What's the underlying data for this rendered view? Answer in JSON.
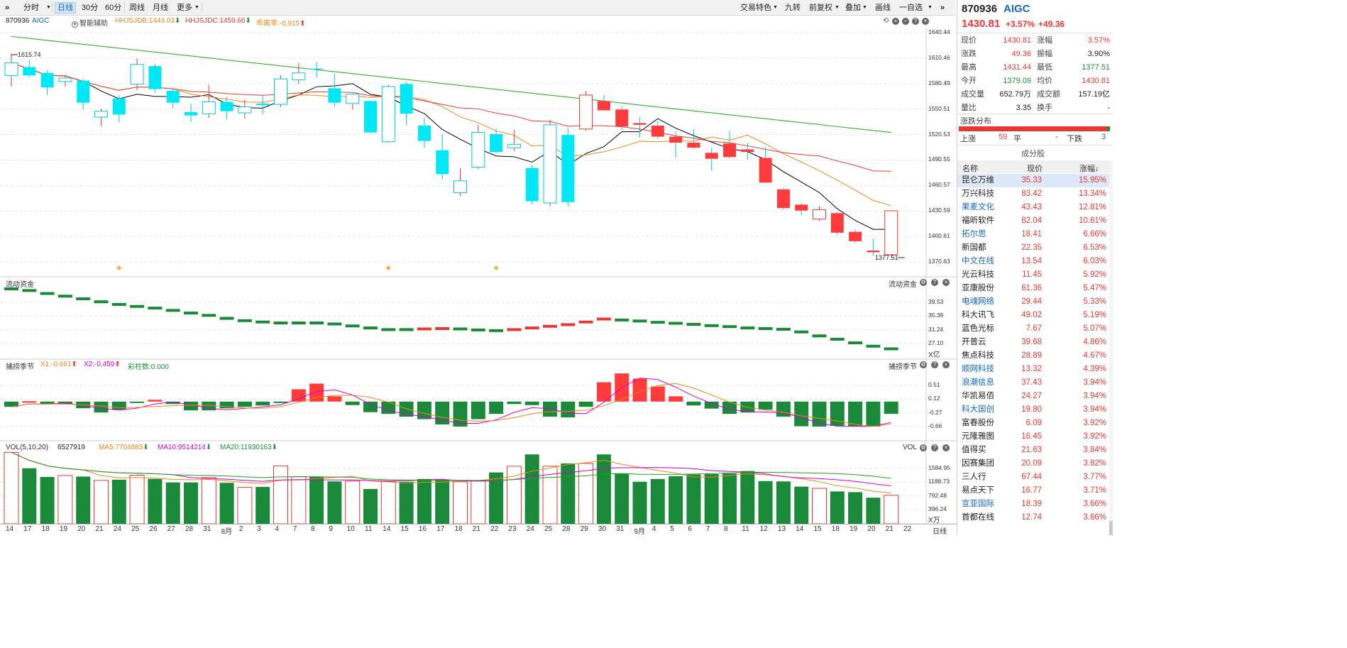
{
  "toolbar": {
    "expand_icon": "»",
    "periods": [
      "分时",
      "日线",
      "30分",
      "60分",
      "周线",
      "月线",
      "更多"
    ],
    "selected_period": "日线",
    "right_buttons": [
      "交易特色",
      "九转",
      "前复权",
      "叠加",
      "画线",
      "一自选"
    ]
  },
  "main_chart": {
    "code": "870936",
    "name": "AIGC",
    "smart_assist": "智能辅助",
    "ind1": "HHJSJDB:1444.03",
    "ind2": "HHJSJDC:1459.66",
    "ind3": "乖离率:-0.915",
    "high_label": "1615.74",
    "low_label": "1377.51",
    "y_labels": [
      "1640.44",
      "1610.46",
      "1580.49",
      "1550.51",
      "1520.53",
      "1490.55",
      "1460.57",
      "1430.59",
      "1400.61",
      "1370.63"
    ]
  },
  "flow_panel": {
    "title": "流动资金",
    "y_labels": [
      "39.53",
      "35.39",
      "31.24",
      "27.10"
    ],
    "unit": "X亿"
  },
  "season_panel": {
    "title": "捕捞季节",
    "x1": "X1:-0.661",
    "x2": "X2:-0.459",
    "bars": "彩柱数:0.000",
    "y_labels": [
      "0.51",
      "0.12",
      "-0.27",
      "-0.66"
    ]
  },
  "vol_panel": {
    "title": "VOL(5,10,20)",
    "vol": "6527919",
    "ma5": "MA5:7704883",
    "ma10": "MA10:9514214",
    "ma20": "MA20:11930163",
    "y_labels": [
      "1584.95",
      "1188.73",
      "792.48",
      "396.24"
    ],
    "unit": "X万"
  },
  "x_axis": {
    "labels": [
      "14",
      "17",
      "18",
      "19",
      "20",
      "21",
      "24",
      "25",
      "26",
      "27",
      "28",
      "31",
      "8月",
      "2",
      "3",
      "4",
      "7",
      "8",
      "9",
      "10",
      "11",
      "14",
      "15",
      "16",
      "17",
      "18",
      "21",
      "22",
      "23",
      "24",
      "25",
      "28",
      "29",
      "30",
      "31",
      "9月",
      "4",
      "5",
      "6",
      "7",
      "8",
      "11",
      "12",
      "13",
      "14",
      "15",
      "18",
      "19",
      "20",
      "21",
      "22"
    ],
    "end_label": "日线"
  },
  "chart_data": {
    "type": "candlestick",
    "dates": [
      "14",
      "17",
      "18",
      "19",
      "20",
      "21",
      "24",
      "25",
      "26",
      "27",
      "28",
      "31",
      "8月",
      "2",
      "3",
      "4",
      "7",
      "8",
      "9",
      "10",
      "11",
      "14",
      "15",
      "16",
      "17",
      "18",
      "21",
      "22",
      "23",
      "24",
      "25",
      "28",
      "29",
      "30",
      "31",
      "9月",
      "4",
      "5",
      "6",
      "7",
      "8",
      "11",
      "12",
      "13",
      "14",
      "15",
      "18",
      "19",
      "20",
      "21"
    ],
    "ohlc": [
      [
        1590,
        1615.74,
        1577,
        1605
      ],
      [
        1600,
        1608,
        1588,
        1590
      ],
      [
        1593,
        1596,
        1567,
        1576
      ],
      [
        1583,
        1591,
        1577,
        1587
      ],
      [
        1584,
        1586,
        1550,
        1558
      ],
      [
        1541,
        1551,
        1530,
        1548
      ],
      [
        1563,
        1567,
        1535,
        1544
      ],
      [
        1580,
        1610,
        1573,
        1603
      ],
      [
        1601,
        1604,
        1570,
        1574
      ],
      [
        1572,
        1575,
        1551,
        1558
      ],
      [
        1547,
        1557,
        1535,
        1543
      ],
      [
        1545,
        1579,
        1540,
        1559
      ],
      [
        1559,
        1565,
        1538,
        1548
      ],
      [
        1546,
        1562,
        1539,
        1553
      ],
      [
        1557,
        1566,
        1544,
        1555
      ],
      [
        1556,
        1590,
        1553,
        1586
      ],
      [
        1585,
        1605,
        1580,
        1593
      ],
      [
        1598,
        1606,
        1587,
        1597
      ],
      [
        1575,
        1592,
        1553,
        1558
      ],
      [
        1557,
        1569,
        1550,
        1568
      ],
      [
        1560,
        1560,
        1522,
        1523
      ],
      [
        1512,
        1579,
        1511,
        1577
      ],
      [
        1580,
        1582,
        1532,
        1545
      ],
      [
        1531,
        1540,
        1505,
        1513
      ],
      [
        1502,
        1521,
        1468,
        1474
      ],
      [
        1452,
        1481,
        1448,
        1466
      ],
      [
        1482,
        1532,
        1480,
        1523
      ],
      [
        1521,
        1528,
        1498,
        1500
      ],
      [
        1505,
        1526,
        1501,
        1509
      ],
      [
        1481,
        1485,
        1438,
        1442
      ],
      [
        1440,
        1538,
        1436,
        1532
      ],
      [
        1520,
        1528,
        1436,
        1441
      ],
      [
        1527,
        1572,
        1525,
        1567
      ],
      [
        1560,
        1567,
        1549,
        1549
      ],
      [
        1550,
        1554,
        1526,
        1530
      ],
      [
        1534,
        1541,
        1517,
        1532
      ],
      [
        1531,
        1536,
        1515,
        1518
      ],
      [
        1518,
        1524,
        1493,
        1511
      ],
      [
        1511,
        1527,
        1504,
        1505
      ],
      [
        1499,
        1505,
        1478,
        1492
      ],
      [
        1510,
        1525,
        1492,
        1494
      ],
      [
        1503,
        1511,
        1491,
        1500
      ],
      [
        1493,
        1506,
        1463,
        1464
      ],
      [
        1456,
        1458,
        1432,
        1434
      ],
      [
        1438,
        1440,
        1426,
        1431
      ],
      [
        1421,
        1436,
        1419,
        1432
      ],
      [
        1428,
        1430,
        1402,
        1405
      ],
      [
        1406,
        1409,
        1393,
        1395
      ],
      [
        1384,
        1398,
        1377.51,
        1382
      ],
      [
        1379.09,
        1431.44,
        1377.51,
        1430.81
      ]
    ]
  },
  "quote": {
    "code": "870936",
    "name": "AIGC",
    "price": "1430.81",
    "pct": "+3.57%",
    "chg": "+49.36",
    "rows": [
      {
        "l1": "现价",
        "v1": "1430.81",
        "c1": "red",
        "l2": "涨幅",
        "v2": "3.57%",
        "c2": "red"
      },
      {
        "l1": "涨跌",
        "v1": "49.36",
        "c1": "red",
        "l2": "振幅",
        "v2": "3.90%",
        "c2": "dark"
      },
      {
        "l1": "最高",
        "v1": "1431.44",
        "c1": "red",
        "l2": "最低",
        "v2": "1377.51",
        "c2": "green"
      },
      {
        "l1": "今开",
        "v1": "1379.09",
        "c1": "green",
        "l2": "均价",
        "v2": "1430.81",
        "c2": "red"
      },
      {
        "l1": "成交量",
        "v1": "652.79万",
        "c1": "dark",
        "l2": "成交额",
        "v2": "157.19亿",
        "c2": "dark"
      },
      {
        "l1": "量比",
        "v1": "3.35",
        "c1": "dark",
        "l2": "换手",
        "v2": "-",
        "c2": "dark"
      }
    ],
    "dist_title": "涨跌分布",
    "up_label": "上涨",
    "up_count": "59",
    "flat_label": "平",
    "flat_count": "-",
    "down_label": "下跌",
    "down_count": "3",
    "constituents_title": "成分股",
    "col_name": "名称",
    "col_price": "现价",
    "col_pct": "涨幅↓",
    "stocks": [
      {
        "name": "昆仑万维",
        "price": "35.33",
        "pct": "15.95%",
        "blue": false
      },
      {
        "name": "万兴科技",
        "price": "83.42",
        "pct": "13.34%",
        "blue": false
      },
      {
        "name": "果麦文化",
        "price": "43.43",
        "pct": "12.81%",
        "blue": true
      },
      {
        "name": "福昕软件",
        "price": "82.04",
        "pct": "10.61%",
        "blue": false
      },
      {
        "name": "拓尔思",
        "price": "18.41",
        "pct": "6.66%",
        "blue": true
      },
      {
        "name": "新国都",
        "price": "22.35",
        "pct": "6.53%",
        "blue": false
      },
      {
        "name": "中文在线",
        "price": "13.54",
        "pct": "6.03%",
        "blue": true
      },
      {
        "name": "光云科技",
        "price": "11.45",
        "pct": "5.92%",
        "blue": false
      },
      {
        "name": "亚康股份",
        "price": "61.36",
        "pct": "5.47%",
        "blue": false
      },
      {
        "name": "电魂网络",
        "price": "29.44",
        "pct": "5.33%",
        "blue": true
      },
      {
        "name": "科大讯飞",
        "price": "49.02",
        "pct": "5.19%",
        "blue": false
      },
      {
        "name": "蓝色光标",
        "price": "7.67",
        "pct": "5.07%",
        "blue": false
      },
      {
        "name": "开普云",
        "price": "39.68",
        "pct": "4.86%",
        "blue": false
      },
      {
        "name": "焦点科技",
        "price": "28.89",
        "pct": "4.67%",
        "blue": false
      },
      {
        "name": "顺网科技",
        "price": "13.32",
        "pct": "4.39%",
        "blue": true
      },
      {
        "name": "浪潮信息",
        "price": "37.43",
        "pct": "3.94%",
        "blue": true
      },
      {
        "name": "华凯易佰",
        "price": "24.27",
        "pct": "3.94%",
        "blue": false
      },
      {
        "name": "科大国创",
        "price": "19.80",
        "pct": "3.94%",
        "blue": true
      },
      {
        "name": "富春股份",
        "price": "6.09",
        "pct": "3.92%",
        "blue": false
      },
      {
        "name": "元隆雅图",
        "price": "16.45",
        "pct": "3.92%",
        "blue": false
      },
      {
        "name": "值得买",
        "price": "21.63",
        "pct": "3.84%",
        "blue": false
      },
      {
        "name": "因赛集团",
        "price": "20.09",
        "pct": "3.82%",
        "blue": false
      },
      {
        "name": "三人行",
        "price": "67.44",
        "pct": "3.77%",
        "blue": false
      },
      {
        "name": "易点天下",
        "price": "16.77",
        "pct": "3.71%",
        "blue": false
      },
      {
        "name": "宣亚国际",
        "price": "18.39",
        "pct": "3.66%",
        "blue": true
      },
      {
        "name": "首都在线",
        "price": "12.74",
        "pct": "3.66%",
        "blue": false
      }
    ]
  },
  "colors": {
    "up": "#ff3333",
    "down": "#00e0f0",
    "ma5": "#000000",
    "ma10": "#e68a1e",
    "ma20": "#e53935",
    "ma60": "#1ca51c",
    "vol_down": "#1a8a3a",
    "vol_up": "#e53935"
  }
}
